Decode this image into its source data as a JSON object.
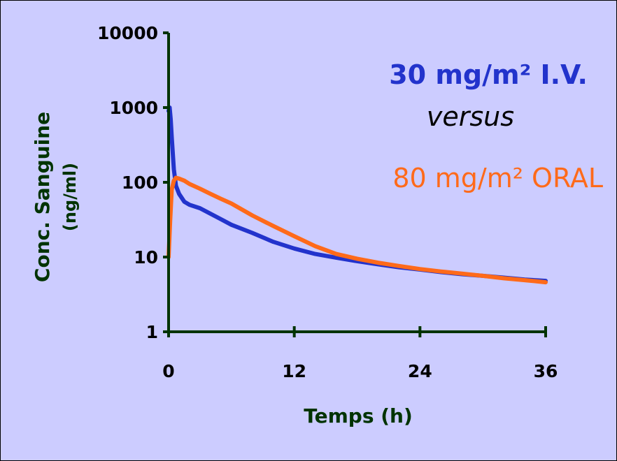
{
  "chart_data": {
    "type": "line",
    "y_scale": "log",
    "xlabel": "Temps (h)",
    "ylabel": "Conc. Sanguine",
    "ylabel_unit": "(ng/ml)",
    "xlim": [
      0,
      36
    ],
    "ylim": [
      1,
      10000
    ],
    "x_ticks": [
      "0",
      "12",
      "24",
      "36"
    ],
    "y_ticks": [
      "1",
      "10",
      "100",
      "1000",
      "10000"
    ],
    "grid": false,
    "legend": "none",
    "annotations": {
      "iv_label": "30 mg/m² I.V.",
      "versus": "versus",
      "oral_label": "80 mg/m² ORAL"
    },
    "colors": {
      "background": "#ccccff",
      "iv": "#2233cc",
      "oral": "#ff6a1a",
      "axis": "#003300"
    },
    "series": [
      {
        "key": "iv",
        "x": [
          0,
          0.1,
          0.2,
          0.3,
          0.5,
          0.7,
          1,
          1.5,
          2,
          3,
          4,
          5,
          6,
          8,
          10,
          12,
          14,
          16,
          18,
          20,
          22,
          24,
          26,
          28,
          30,
          32,
          34,
          36
        ],
        "y": [
          900,
          1000,
          700,
          400,
          150,
          90,
          70,
          55,
          50,
          45,
          38,
          32,
          27,
          21,
          16,
          13,
          11,
          9.8,
          8.8,
          8.0,
          7.3,
          6.8,
          6.3,
          5.9,
          5.6,
          5.3,
          5.0,
          4.8
        ]
      },
      {
        "key": "oral",
        "x": [
          0,
          0.15,
          0.3,
          0.5,
          0.7,
          1,
          1.5,
          2,
          3,
          4,
          5,
          6,
          8,
          10,
          12,
          14,
          16,
          18,
          20,
          22,
          24,
          26,
          28,
          30,
          32,
          34,
          36
        ],
        "y": [
          10,
          30,
          80,
          105,
          115,
          112,
          105,
          95,
          82,
          70,
          60,
          52,
          36,
          26,
          19,
          14,
          11,
          9.5,
          8.4,
          7.6,
          6.9,
          6.4,
          6.0,
          5.6,
          5.2,
          4.9,
          4.6
        ]
      }
    ]
  }
}
